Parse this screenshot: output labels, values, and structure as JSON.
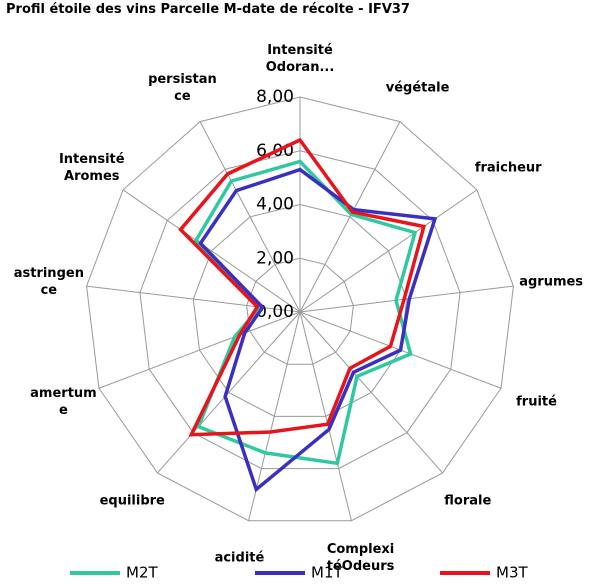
{
  "chart_data": {
    "type": "radar",
    "title": "Profil étoile des vins Parcelle M-date de récolte - IFV37",
    "categories": [
      "Intensité Odoran...",
      "végétale",
      "fraicheur",
      "agrumes",
      "fruité",
      "florale",
      "ComplexitéOdeurs",
      "acidité",
      "equilibre",
      "amertume",
      "astringence",
      "Intensité Aromes",
      "persistance"
    ],
    "series": [
      {
        "name": "M2T",
        "color": "#2fc9a0",
        "values": [
          5.6,
          4.1,
          5.2,
          3.6,
          4.4,
          3.2,
          5.8,
          5.4,
          5.7,
          2.6,
          1.5,
          4.7,
          5.5
        ]
      },
      {
        "name": "M1T",
        "color": "#3a2fc0",
        "values": [
          5.3,
          4.3,
          6.1,
          4.1,
          4.0,
          3.0,
          4.5,
          6.8,
          4.2,
          2.2,
          1.4,
          4.5,
          5.1
        ]
      },
      {
        "name": "M3T",
        "color": "#e8141b",
        "values": [
          6.4,
          4.2,
          5.6,
          3.9,
          3.6,
          2.8,
          4.3,
          4.6,
          6.1,
          2.4,
          1.6,
          5.4,
          5.8
        ]
      }
    ],
    "ylim": [
      0,
      8
    ],
    "yticks": [
      {
        "value": 0,
        "label": "0,00"
      },
      {
        "value": 2,
        "label": "2,00"
      },
      {
        "value": 4,
        "label": "4,00"
      },
      {
        "value": 6,
        "label": "6,00"
      },
      {
        "value": 8,
        "label": "8,00"
      }
    ],
    "legend": "bottom"
  }
}
